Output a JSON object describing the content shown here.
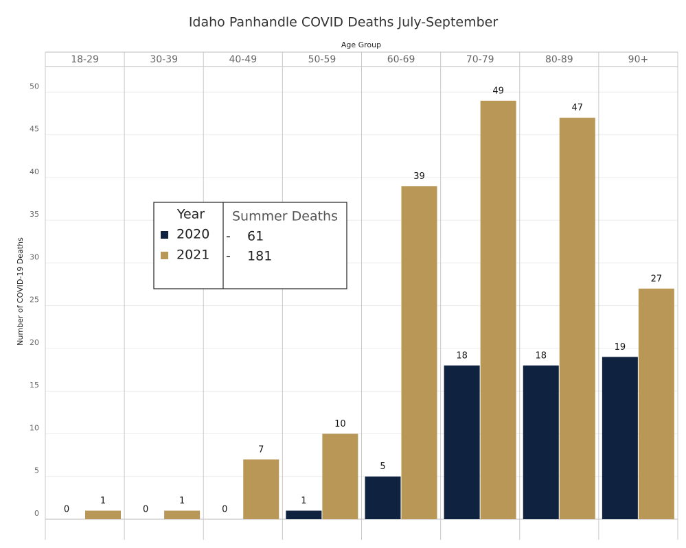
{
  "chart_data": {
    "type": "bar",
    "title": "Idaho Panhandle COVID Deaths July-September",
    "x_label": "Age Group",
    "y_label": "Number of COVID-19 Deaths",
    "categories": [
      "18-29",
      "30-39",
      "40-49",
      "50-59",
      "60-69",
      "70-79",
      "80-89",
      "90+"
    ],
    "legend_title": "Year",
    "series": [
      {
        "name": "2020",
        "color": "#0f2341",
        "values": [
          0,
          0,
          0,
          1,
          5,
          18,
          18,
          19
        ]
      },
      {
        "name": "2021",
        "color": "#b89757",
        "values": [
          1,
          1,
          7,
          10,
          39,
          49,
          47,
          27
        ]
      }
    ],
    "summer_deaths": {
      "title": "Summer Deaths",
      "rows": [
        "-    61",
        "-    181"
      ]
    },
    "ylim": [
      0,
      53
    ],
    "yticks": [
      0,
      5,
      10,
      15,
      20,
      25,
      30,
      35,
      40,
      45,
      50
    ],
    "grid": true
  }
}
